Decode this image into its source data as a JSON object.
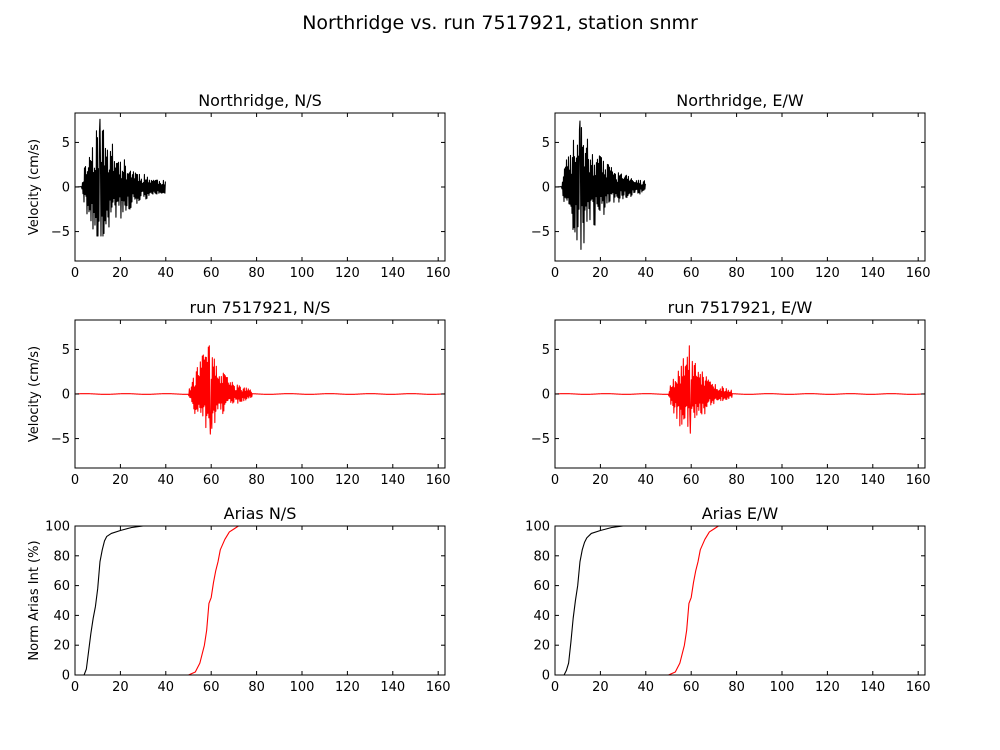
{
  "figure": {
    "title": "Northridge vs. run 7517921, station snmr"
  },
  "colors": {
    "data": "#000000",
    "simulation": "#ff0000",
    "axes": "#000000"
  },
  "chart_data": [
    {
      "id": "p1",
      "type": "line",
      "title": "Northridge, N/S",
      "xlabel": "",
      "ylabel": "Velocity (cm/s)",
      "xlim": [
        0,
        163
      ],
      "ylim": [
        -8.3,
        8.3
      ],
      "xticks": [
        0,
        20,
        40,
        60,
        80,
        100,
        120,
        140,
        160
      ],
      "yticks": [
        -5,
        0,
        5
      ],
      "series": [
        {
          "color": "#000000",
          "kind": "seismogram",
          "t0": 0,
          "t_peak": 11,
          "t_end": 40,
          "peak_pos": 7.6,
          "peak_neg": -5.5,
          "seed": 11
        }
      ]
    },
    {
      "id": "p2",
      "type": "line",
      "title": "Northridge, E/W",
      "xlabel": "",
      "ylabel": "",
      "xlim": [
        0,
        163
      ],
      "ylim": [
        -8.3,
        8.3
      ],
      "xticks": [
        0,
        20,
        40,
        60,
        80,
        100,
        120,
        140,
        160
      ],
      "yticks": [
        -5,
        0,
        5
      ],
      "series": [
        {
          "color": "#000000",
          "kind": "seismogram",
          "t0": 0,
          "t_peak": 11,
          "t_end": 40,
          "peak_pos": 7.4,
          "peak_neg": -7.0,
          "seed": 23
        }
      ]
    },
    {
      "id": "p3",
      "type": "line",
      "title": "run 7517921, N/S",
      "xlabel": "",
      "ylabel": "Velocity (cm/s)",
      "xlim": [
        0,
        163
      ],
      "ylim": [
        -8.3,
        8.3
      ],
      "xticks": [
        0,
        20,
        40,
        60,
        80,
        100,
        120,
        140,
        160
      ],
      "yticks": [
        -5,
        0,
        5
      ],
      "series": [
        {
          "color": "#ff0000",
          "kind": "seismogram",
          "t0": 0,
          "t_onset": 50,
          "t_peak": 59,
          "t_end": 78,
          "t_max": 163,
          "peak_pos": 5.4,
          "peak_neg": -4.5,
          "seed": 37
        }
      ]
    },
    {
      "id": "p4",
      "type": "line",
      "title": "run 7517921, E/W",
      "xlabel": "",
      "ylabel": "",
      "xlim": [
        0,
        163
      ],
      "ylim": [
        -8.3,
        8.3
      ],
      "xticks": [
        0,
        20,
        40,
        60,
        80,
        100,
        120,
        140,
        160
      ],
      "yticks": [
        -5,
        0,
        5
      ],
      "series": [
        {
          "color": "#ff0000",
          "kind": "seismogram",
          "t0": 0,
          "t_onset": 50,
          "t_peak": 59,
          "t_end": 78,
          "t_max": 163,
          "peak_pos": 5.4,
          "peak_neg": -4.4,
          "seed": 53
        }
      ]
    },
    {
      "id": "p5",
      "type": "line",
      "title": "Arias N/S",
      "xlabel": "",
      "ylabel": "Norm Arias Int (%)",
      "xlim": [
        0,
        163
      ],
      "ylim": [
        0,
        100
      ],
      "xticks": [
        0,
        20,
        40,
        60,
        80,
        100,
        120,
        140,
        160
      ],
      "yticks": [
        0,
        20,
        40,
        60,
        80,
        100
      ],
      "series": [
        {
          "color": "#000000",
          "kind": "arias",
          "x": [
            0,
            4,
            5,
            6,
            7,
            8,
            9,
            10,
            11,
            12,
            13,
            14,
            16,
            20,
            25,
            30,
            163
          ],
          "y": [
            0,
            0,
            4,
            16,
            28,
            38,
            46,
            58,
            76,
            84,
            90,
            93,
            95,
            97,
            99,
            100,
            100
          ]
        },
        {
          "color": "#ff0000",
          "kind": "arias",
          "x": [
            0,
            50,
            53,
            55,
            57,
            58,
            59,
            60,
            61,
            62,
            63,
            64,
            66,
            68,
            70,
            72,
            163
          ],
          "y": [
            0,
            0,
            2,
            8,
            20,
            30,
            48,
            52,
            62,
            70,
            76,
            84,
            91,
            96,
            98,
            100,
            100
          ]
        }
      ]
    },
    {
      "id": "p6",
      "type": "line",
      "title": "Arias E/W",
      "xlabel": "",
      "ylabel": "",
      "xlim": [
        0,
        163
      ],
      "ylim": [
        0,
        100
      ],
      "xticks": [
        0,
        20,
        40,
        60,
        80,
        100,
        120,
        140,
        160
      ],
      "yticks": [
        0,
        20,
        40,
        60,
        80,
        100
      ],
      "series": [
        {
          "color": "#000000",
          "kind": "arias",
          "x": [
            0,
            4,
            5,
            6,
            7,
            8,
            9,
            10,
            11,
            12,
            13,
            14,
            16,
            20,
            25,
            30,
            163
          ],
          "y": [
            0,
            0,
            3,
            8,
            22,
            38,
            50,
            60,
            76,
            84,
            89,
            92,
            95,
            97,
            99,
            100,
            100
          ]
        },
        {
          "color": "#ff0000",
          "kind": "arias",
          "x": [
            0,
            50,
            53,
            55,
            57,
            58,
            59,
            60,
            61,
            62,
            63,
            64,
            66,
            68,
            70,
            72,
            163
          ],
          "y": [
            0,
            0,
            2,
            8,
            20,
            30,
            48,
            52,
            62,
            70,
            76,
            84,
            91,
            96,
            98,
            100,
            100
          ]
        }
      ]
    }
  ]
}
